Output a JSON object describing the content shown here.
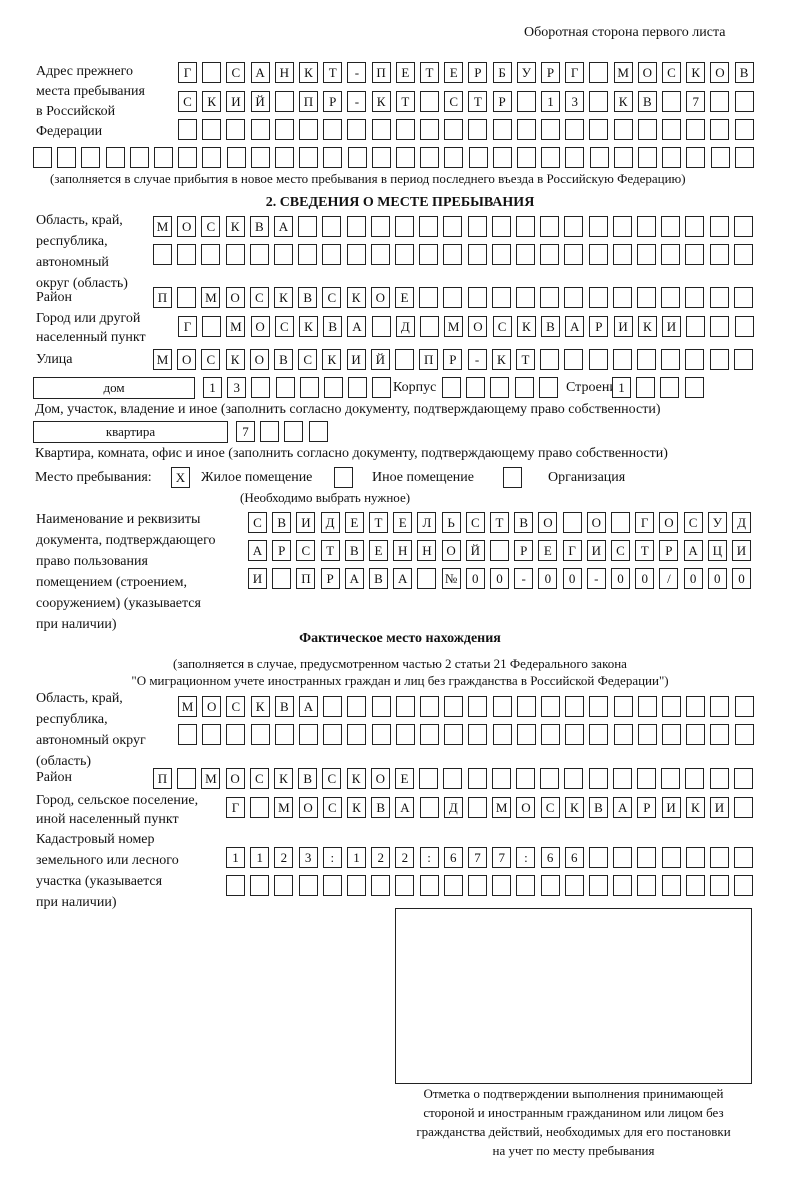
{
  "header": {
    "page_side": "Оборотная сторона первого листа"
  },
  "previous_address": {
    "label": [
      "Адрес прежнего",
      "места пребывания",
      "в Российской",
      "Федерации"
    ],
    "rows": [
      [
        "Г",
        "",
        "С",
        "А",
        "Н",
        "К",
        "Т",
        "-",
        "П",
        "Е",
        "Т",
        "Е",
        "Р",
        "Б",
        "У",
        "Р",
        "Г",
        "",
        "М",
        "О",
        "С",
        "К",
        "О",
        "В"
      ],
      [
        "С",
        "К",
        "И",
        "Й",
        "",
        "П",
        "Р",
        "-",
        "К",
        "Т",
        "",
        "С",
        "Т",
        "Р",
        "",
        "1",
        "3",
        "",
        "К",
        "В",
        "",
        "7",
        "",
        ""
      ],
      [
        "",
        "",
        "",
        "",
        "",
        "",
        "",
        "",
        "",
        "",
        "",
        "",
        "",
        "",
        "",
        "",
        "",
        "",
        "",
        "",
        "",
        "",
        "",
        ""
      ],
      [
        "",
        "",
        "",
        "",
        "",
        "",
        "",
        "",
        "",
        "",
        "",
        "",
        "",
        "",
        "",
        "",
        "",
        "",
        "",
        "",
        "",
        "",
        "",
        "",
        "",
        "",
        "",
        "",
        "",
        ""
      ]
    ],
    "note": "(заполняется в случае прибытия в новое место пребывания в период последнего въезда в Российскую Федерацию)"
  },
  "section2": {
    "title": "2. СВЕДЕНИЯ О МЕСТЕ ПРЕБЫВАНИЯ",
    "region_label": [
      "Область, край,",
      "республика,",
      "автономный",
      "округ (область)"
    ],
    "region_rows": [
      [
        "М",
        "О",
        "С",
        "К",
        "В",
        "А",
        "",
        "",
        "",
        "",
        "",
        "",
        "",
        "",
        "",
        "",
        "",
        "",
        "",
        "",
        "",
        "",
        "",
        "",
        ""
      ],
      [
        "",
        "",
        "",
        "",
        "",
        "",
        "",
        "",
        "",
        "",
        "",
        "",
        "",
        "",
        "",
        "",
        "",
        "",
        "",
        "",
        "",
        "",
        "",
        "",
        ""
      ]
    ],
    "district_label": [
      "Район"
    ],
    "district_row": [
      "П",
      "",
      "М",
      "О",
      "С",
      "К",
      "В",
      "С",
      "К",
      "О",
      "Е",
      "",
      "",
      "",
      "",
      "",
      "",
      "",
      "",
      "",
      "",
      "",
      "",
      "",
      ""
    ],
    "city_label": [
      "Город или другой",
      "населенный пункт"
    ],
    "city_row": [
      "Г",
      "",
      "М",
      "О",
      "С",
      "К",
      "В",
      "А",
      "",
      "Д",
      "",
      "М",
      "О",
      "С",
      "К",
      "В",
      "А",
      "Р",
      "И",
      "К",
      "И",
      "",
      "",
      ""
    ],
    "street_label": [
      "Улица"
    ],
    "street_row": [
      "М",
      "О",
      "С",
      "К",
      "О",
      "В",
      "С",
      "К",
      "И",
      "Й",
      "",
      "П",
      "Р",
      "-",
      "К",
      "Т",
      "",
      "",
      "",
      "",
      "",
      "",
      "",
      "",
      ""
    ],
    "house_type": "дом",
    "house_cells": [
      "1",
      "3",
      "",
      "",
      "",
      "",
      "",
      ""
    ],
    "korpus_label": "Корпус",
    "korpus_cells": [
      "",
      "",
      "",
      "",
      ""
    ],
    "building_label": "Строение",
    "building_cells": [
      "1",
      "",
      "",
      ""
    ],
    "house_note": "Дом, участок, владение и иное (заполнить согласно документу, подтверждающему право собственности)",
    "flat_type": "квартира",
    "flat_cells": [
      "7",
      "",
      "",
      ""
    ],
    "flat_note": "Квартира, комната, офис и иное (заполнить согласно документу, подтверждающему право собственности)",
    "stay_place_label": "Место пребывания:",
    "stay_options": [
      {
        "label": "Жилое помещение",
        "mark": "X"
      },
      {
        "label": "Иное помещение",
        "mark": ""
      },
      {
        "label": "Организация",
        "mark": ""
      }
    ],
    "stay_note": "(Необходимо выбрать нужное)",
    "document_label": [
      "Наименование и реквизиты",
      "документа, подтверждающего",
      "право пользования",
      "помещением (строением,",
      "сооружением) (указывается",
      "при наличии)"
    ],
    "document_rows": [
      [
        "С",
        "В",
        "И",
        "Д",
        "Е",
        "Т",
        "Е",
        "Л",
        "Ь",
        "С",
        "Т",
        "В",
        "О",
        "",
        "О",
        "",
        "Г",
        "О",
        "С",
        "У",
        "Д"
      ],
      [
        "А",
        "Р",
        "С",
        "Т",
        "В",
        "Е",
        "Н",
        "Н",
        "О",
        "Й",
        "",
        "Р",
        "Е",
        "Г",
        "И",
        "С",
        "Т",
        "Р",
        "А",
        "Ц",
        "И"
      ],
      [
        "И",
        "",
        "П",
        "Р",
        "А",
        "В",
        "А",
        "",
        "№",
        "0",
        "0",
        "-",
        "0",
        "0",
        "-",
        "0",
        "0",
        "/",
        "0",
        "0",
        "0"
      ]
    ]
  },
  "actual": {
    "title": "Фактическое место нахождения",
    "note_1": "(заполняется в случае, предусмотренном частью 2 статьи 21 Федерального закона",
    "note_2": "\"О миграционном учете иностранных граждан и лиц без гражданства в Российской Федерации\")",
    "region_label": [
      "Область, край,",
      "республика,",
      "автономный округ",
      "(область)"
    ],
    "region_rows": [
      [
        "М",
        "О",
        "С",
        "К",
        "В",
        "А",
        "",
        "",
        "",
        "",
        "",
        "",
        "",
        "",
        "",
        "",
        "",
        "",
        "",
        "",
        "",
        "",
        "",
        ""
      ],
      [
        "",
        "",
        "",
        "",
        "",
        "",
        "",
        "",
        "",
        "",
        "",
        "",
        "",
        "",
        "",
        "",
        "",
        "",
        "",
        "",
        "",
        "",
        "",
        ""
      ]
    ],
    "district_label": [
      "Район"
    ],
    "district_row": [
      "П",
      "",
      "М",
      "О",
      "С",
      "К",
      "В",
      "С",
      "К",
      "О",
      "Е",
      "",
      "",
      "",
      "",
      "",
      "",
      "",
      "",
      "",
      "",
      "",
      "",
      "",
      ""
    ],
    "city_label": [
      "Город, сельское поселение,",
      "иной населенный пункт"
    ],
    "city_row": [
      "Г",
      "",
      "М",
      "О",
      "С",
      "К",
      "В",
      "А",
      "",
      "Д",
      "",
      "М",
      "О",
      "С",
      "К",
      "В",
      "А",
      "Р",
      "И",
      "К",
      "И",
      ""
    ],
    "cadastral_label": [
      "Кадастровый номер",
      "земельного или лесного",
      "участка (указывается",
      "при наличии)"
    ],
    "cadastral_rows": [
      [
        "1",
        "1",
        "2",
        "3",
        ":",
        "1",
        "2",
        "2",
        ":",
        "6",
        "7",
        "7",
        ":",
        "6",
        "6",
        "",
        "",
        "",
        "",
        "",
        "",
        ""
      ],
      [
        "",
        "",
        "",
        "",
        "",
        "",
        "",
        "",
        "",
        "",
        "",
        "",
        "",
        "",
        "",
        "",
        "",
        "",
        "",
        "",
        "",
        ""
      ]
    ]
  },
  "stamp": {
    "caption": [
      "Отметка о подтверждении выполнения принимающей",
      "стороной и иностранным гражданином или лицом без",
      "гражданства действий, необходимых для его постановки",
      "на учет по месту пребывания"
    ]
  }
}
